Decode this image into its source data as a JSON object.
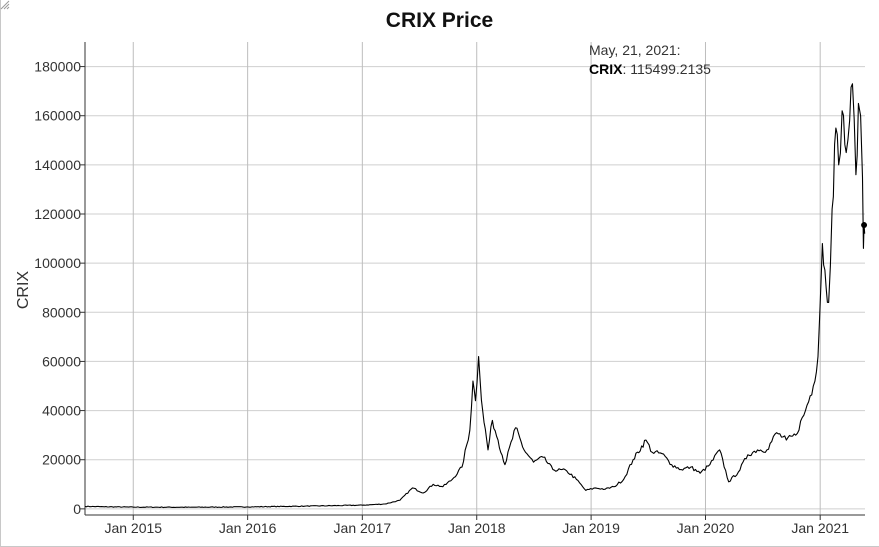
{
  "chart_data": {
    "type": "line",
    "title": "CRIX Price",
    "xlabel": "",
    "ylabel": "CRIX",
    "x_ticks": [
      "Jan 2015",
      "Jan 2016",
      "Jan 2017",
      "Jan 2018",
      "Jan 2019",
      "Jan 2020",
      "Jan 2021"
    ],
    "y_ticks": [
      "0",
      "20000",
      "40000",
      "60000",
      "80000",
      "100000",
      "120000",
      "140000",
      "160000",
      "180000"
    ],
    "xlim": [
      "2014-07-31",
      "2021-05-24"
    ],
    "ylim": [
      -2500,
      190000
    ],
    "grid": true,
    "legend": "none",
    "line_color": "#000000",
    "series": [
      {
        "values": [
          [
            "2014-07-31",
            1000
          ],
          [
            "2014-10-01",
            850
          ],
          [
            "2015-01-01",
            700
          ],
          [
            "2015-07-01",
            650
          ],
          [
            "2016-01-01",
            800
          ],
          [
            "2016-07-01",
            1100
          ],
          [
            "2017-01-01",
            1500
          ],
          [
            "2017-03-15",
            2000
          ],
          [
            "2017-05-01",
            3500
          ],
          [
            "2017-06-10",
            8500
          ],
          [
            "2017-07-15",
            6500
          ],
          [
            "2017-08-15",
            10000
          ],
          [
            "2017-09-15",
            9000
          ],
          [
            "2017-10-15",
            12000
          ],
          [
            "2017-11-15",
            17000
          ],
          [
            "2017-12-10",
            32000
          ],
          [
            "2017-12-20",
            52000
          ],
          [
            "2017-12-28",
            44000
          ],
          [
            "2018-01-07",
            62000
          ],
          [
            "2018-01-12",
            52000
          ],
          [
            "2018-01-20",
            40000
          ],
          [
            "2018-02-06",
            24000
          ],
          [
            "2018-02-20",
            36000
          ],
          [
            "2018-03-10",
            28000
          ],
          [
            "2018-04-01",
            18000
          ],
          [
            "2018-05-05",
            33000
          ],
          [
            "2018-06-01",
            24000
          ],
          [
            "2018-07-01",
            19000
          ],
          [
            "2018-08-01",
            21000
          ],
          [
            "2018-09-01",
            16000
          ],
          [
            "2018-10-15",
            15500
          ],
          [
            "2018-11-15",
            12000
          ],
          [
            "2018-12-15",
            7500
          ],
          [
            "2019-01-15",
            8500
          ],
          [
            "2019-02-15",
            8000
          ],
          [
            "2019-03-15",
            9000
          ],
          [
            "2019-04-15",
            12000
          ],
          [
            "2019-05-15",
            20000
          ],
          [
            "2019-06-25",
            28000
          ],
          [
            "2019-07-15",
            23000
          ],
          [
            "2019-08-15",
            22500
          ],
          [
            "2019-09-15",
            18000
          ],
          [
            "2019-10-15",
            16000
          ],
          [
            "2019-11-15",
            17000
          ],
          [
            "2019-12-15",
            14500
          ],
          [
            "2020-01-15",
            18000
          ],
          [
            "2020-02-15",
            24000
          ],
          [
            "2020-03-15",
            11000
          ],
          [
            "2020-04-15",
            15000
          ],
          [
            "2020-05-15",
            22000
          ],
          [
            "2020-06-15",
            24000
          ],
          [
            "2020-07-15",
            24000
          ],
          [
            "2020-08-15",
            31000
          ],
          [
            "2020-09-15",
            28000
          ],
          [
            "2020-10-15",
            30000
          ],
          [
            "2020-11-15",
            40000
          ],
          [
            "2020-12-10",
            50000
          ],
          [
            "2020-12-25",
            62000
          ],
          [
            "2021-01-08",
            108000
          ],
          [
            "2021-01-20",
            90000
          ],
          [
            "2021-01-28",
            84000
          ],
          [
            "2021-02-08",
            122000
          ],
          [
            "2021-02-20",
            155000
          ],
          [
            "2021-03-01",
            140000
          ],
          [
            "2021-03-12",
            162000
          ],
          [
            "2021-03-25",
            145000
          ],
          [
            "2021-04-05",
            158000
          ],
          [
            "2021-04-14",
            173000
          ],
          [
            "2021-04-25",
            136000
          ],
          [
            "2021-05-03",
            165000
          ],
          [
            "2021-05-10",
            160000
          ],
          [
            "2021-05-16",
            135000
          ],
          [
            "2021-05-19",
            106000
          ],
          [
            "2021-05-21",
            115499.2135
          ],
          [
            "2021-05-23",
            112000
          ]
        ]
      }
    ],
    "hover": {
      "date_label": "May, 21, 2021:",
      "series_label": "CRIX",
      "value_text": ": 115499.2135",
      "x": "2021-05-21",
      "y": 115499.2135
    }
  }
}
